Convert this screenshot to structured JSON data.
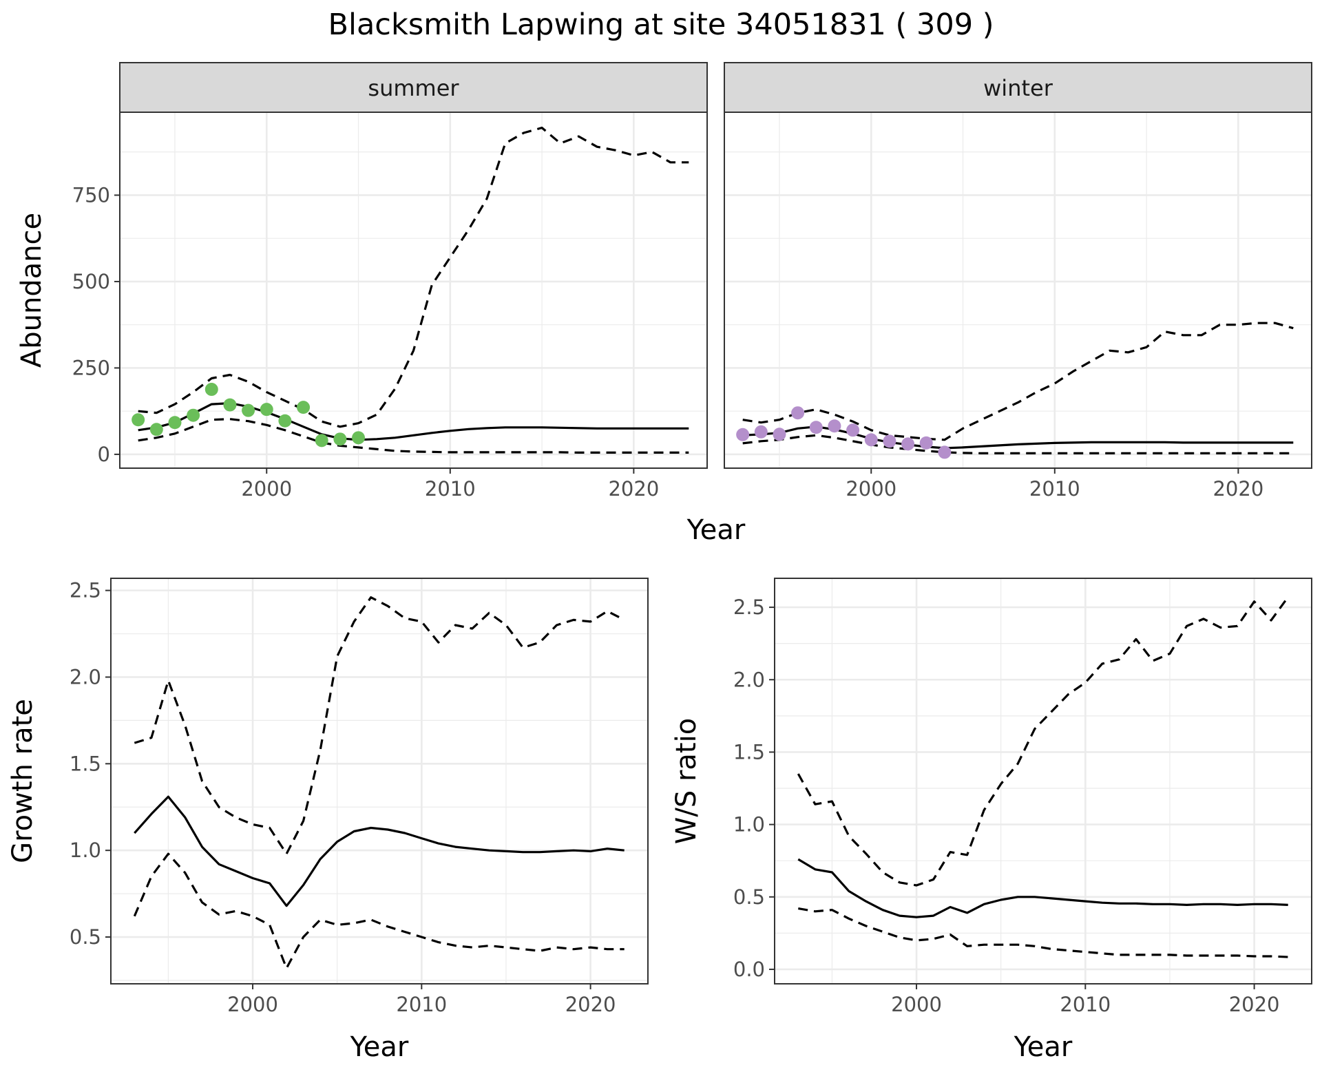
{
  "title": "Blacksmith Lapwing at site 34051831 ( 309 )",
  "colors": {
    "summer_points": "#6ABE59",
    "winter_points": "#B48FCB",
    "line": "#000000",
    "strip_bg": "#D9D9D9",
    "grid": "#EBEBEB"
  },
  "chart_data": [
    {
      "type": "line",
      "panel": "summer",
      "strip_label": "summer",
      "xlabel": "Year",
      "ylabel": "Abundance",
      "xlim": [
        1992,
        2024
      ],
      "ylim": [
        -40,
        990
      ],
      "x_ticks": [
        2000,
        2010,
        2020
      ],
      "y_ticks": [
        0,
        250,
        500,
        750
      ],
      "grid": true,
      "observed_points": {
        "x": [
          1993,
          1994,
          1995,
          1996,
          1997,
          1998,
          1999,
          2000,
          2001,
          2002,
          2003,
          2004,
          2005
        ],
        "y": [
          100,
          72,
          92,
          113,
          188,
          143,
          127,
          130,
          97,
          136,
          40,
          44,
          48
        ]
      },
      "series": [
        {
          "style": "solid",
          "x": [
            1993,
            1994,
            1995,
            1996,
            1997,
            1998,
            1999,
            2000,
            2001,
            2002,
            2003,
            2004,
            2005,
            2006,
            2007,
            2008,
            2009,
            2010,
            2011,
            2012,
            2013,
            2014,
            2015,
            2016,
            2017,
            2018,
            2019,
            2020,
            2021,
            2022,
            2023
          ],
          "y": [
            70,
            78,
            92,
            118,
            145,
            148,
            138,
            122,
            102,
            80,
            58,
            46,
            42,
            44,
            48,
            55,
            62,
            68,
            73,
            76,
            78,
            78,
            78,
            77,
            76,
            75,
            75,
            75,
            75,
            75,
            75
          ]
        },
        {
          "style": "dashed",
          "x": [
            1993,
            1994,
            1995,
            1996,
            1997,
            1998,
            1999,
            2000,
            2001,
            2002,
            2003,
            2004,
            2005,
            2006,
            2007,
            2008,
            2009,
            2010,
            2011,
            2012,
            2013,
            2014,
            2015,
            2016,
            2017,
            2018,
            2019,
            2020,
            2021,
            2022,
            2023
          ],
          "y": [
            125,
            120,
            145,
            180,
            220,
            230,
            210,
            180,
            155,
            130,
            95,
            80,
            90,
            115,
            190,
            300,
            490,
            570,
            650,
            740,
            900,
            930,
            945,
            900,
            920,
            890,
            880,
            865,
            875,
            845,
            845
          ]
        },
        {
          "style": "dashed",
          "x": [
            1993,
            1994,
            1995,
            1996,
            1997,
            1998,
            1999,
            2000,
            2001,
            2002,
            2003,
            2004,
            2005,
            2006,
            2007,
            2008,
            2009,
            2010,
            2011,
            2012,
            2013,
            2014,
            2015,
            2016,
            2017,
            2018,
            2019,
            2020,
            2021,
            2022,
            2023
          ],
          "y": [
            40,
            48,
            60,
            80,
            100,
            102,
            96,
            85,
            70,
            52,
            34,
            25,
            20,
            15,
            10,
            8,
            7,
            6,
            6,
            6,
            6,
            6,
            6,
            6,
            5,
            5,
            5,
            5,
            5,
            5,
            5
          ]
        }
      ]
    },
    {
      "type": "line",
      "panel": "winter",
      "strip_label": "winter",
      "xlabel": "Year",
      "ylabel": "",
      "xlim": [
        1992,
        2024
      ],
      "ylim": [
        -40,
        990
      ],
      "x_ticks": [
        2000,
        2010,
        2020
      ],
      "y_ticks": [
        0,
        250,
        500,
        750
      ],
      "grid": true,
      "observed_points": {
        "x": [
          1993,
          1994,
          1995,
          1996,
          1997,
          1998,
          1999,
          2000,
          2001,
          2002,
          2003,
          2004
        ],
        "y": [
          57,
          65,
          58,
          120,
          78,
          82,
          70,
          42,
          38,
          30,
          33,
          6
        ]
      },
      "series": [
        {
          "style": "solid",
          "x": [
            1993,
            1994,
            1995,
            1996,
            1997,
            1998,
            1999,
            2000,
            2001,
            2002,
            2003,
            2004,
            2005,
            2006,
            2007,
            2008,
            2009,
            2010,
            2011,
            2012,
            2013,
            2014,
            2015,
            2016,
            2017,
            2018,
            2019,
            2020,
            2021,
            2022,
            2023
          ],
          "y": [
            55,
            58,
            62,
            75,
            80,
            72,
            60,
            45,
            35,
            28,
            22,
            18,
            20,
            23,
            26,
            29,
            31,
            33,
            34,
            35,
            35,
            35,
            35,
            35,
            34,
            34,
            34,
            34,
            34,
            34,
            34
          ]
        },
        {
          "style": "dashed",
          "x": [
            1993,
            1994,
            1995,
            1996,
            1997,
            1998,
            1999,
            2000,
            2001,
            2002,
            2003,
            2004,
            2005,
            2006,
            2007,
            2008,
            2009,
            2010,
            2011,
            2012,
            2013,
            2014,
            2015,
            2016,
            2017,
            2018,
            2019,
            2020,
            2021,
            2022,
            2023
          ],
          "y": [
            100,
            92,
            100,
            120,
            130,
            115,
            95,
            70,
            55,
            50,
            45,
            42,
            75,
            100,
            125,
            150,
            180,
            205,
            240,
            270,
            300,
            295,
            310,
            355,
            345,
            345,
            375,
            375,
            380,
            380,
            365
          ]
        },
        {
          "style": "dashed",
          "x": [
            1993,
            1994,
            1995,
            1996,
            1997,
            1998,
            1999,
            2000,
            2001,
            2002,
            2003,
            2004,
            2005,
            2006,
            2007,
            2008,
            2009,
            2010,
            2011,
            2012,
            2013,
            2014,
            2015,
            2016,
            2017,
            2018,
            2019,
            2020,
            2021,
            2022,
            2023
          ],
          "y": [
            32,
            38,
            42,
            50,
            55,
            48,
            38,
            28,
            20,
            15,
            10,
            6,
            4,
            3,
            3,
            3,
            3,
            3,
            3,
            3,
            3,
            3,
            3,
            3,
            3,
            3,
            3,
            3,
            3,
            3,
            3
          ]
        }
      ]
    },
    {
      "type": "line",
      "panel": "growth",
      "xlabel": "Year",
      "ylabel": "Growth rate",
      "xlim": [
        1991.6,
        2023.4
      ],
      "ylim": [
        0.23,
        2.57
      ],
      "x_ticks": [
        2000,
        2010,
        2020
      ],
      "y_ticks": [
        0.5,
        1.0,
        1.5,
        2.0,
        2.5
      ],
      "y_tick_labels": [
        "0.5",
        "1.0",
        "1.5",
        "2.0",
        "2.5"
      ],
      "grid": true,
      "series": [
        {
          "style": "solid",
          "x": [
            1993,
            1994,
            1995,
            1996,
            1997,
            1998,
            1999,
            2000,
            2001,
            2002,
            2003,
            2004,
            2005,
            2006,
            2007,
            2008,
            2009,
            2010,
            2011,
            2012,
            2013,
            2014,
            2015,
            2016,
            2017,
            2018,
            2019,
            2020,
            2021,
            2022
          ],
          "y": [
            1.1,
            1.21,
            1.31,
            1.19,
            1.02,
            0.92,
            0.88,
            0.84,
            0.81,
            0.68,
            0.8,
            0.95,
            1.05,
            1.11,
            1.13,
            1.12,
            1.1,
            1.07,
            1.04,
            1.02,
            1.01,
            1.0,
            0.995,
            0.99,
            0.99,
            0.995,
            1.0,
            0.995,
            1.01,
            1.0
          ]
        },
        {
          "style": "dashed",
          "x": [
            1993,
            1994,
            1995,
            1996,
            1997,
            1998,
            1999,
            2000,
            2001,
            2002,
            2003,
            2004,
            2005,
            2006,
            2007,
            2008,
            2009,
            2010,
            2011,
            2012,
            2013,
            2014,
            2015,
            2016,
            2017,
            2018,
            2019,
            2020,
            2021,
            2022
          ],
          "y": [
            1.62,
            1.65,
            1.98,
            1.72,
            1.4,
            1.25,
            1.19,
            1.15,
            1.13,
            0.98,
            1.17,
            1.58,
            2.12,
            2.32,
            2.46,
            2.41,
            2.34,
            2.32,
            2.2,
            2.3,
            2.28,
            2.37,
            2.3,
            2.17,
            2.2,
            2.3,
            2.33,
            2.32,
            2.38,
            2.33
          ]
        },
        {
          "style": "dashed",
          "x": [
            1993,
            1994,
            1995,
            1996,
            1997,
            1998,
            1999,
            2000,
            2001,
            2002,
            2003,
            2004,
            2005,
            2006,
            2007,
            2008,
            2009,
            2010,
            2011,
            2012,
            2013,
            2014,
            2015,
            2016,
            2017,
            2018,
            2019,
            2020,
            2021,
            2022
          ],
          "y": [
            0.62,
            0.85,
            0.98,
            0.87,
            0.7,
            0.63,
            0.65,
            0.62,
            0.57,
            0.32,
            0.5,
            0.6,
            0.57,
            0.58,
            0.6,
            0.56,
            0.53,
            0.5,
            0.47,
            0.45,
            0.44,
            0.45,
            0.44,
            0.43,
            0.42,
            0.44,
            0.43,
            0.44,
            0.43,
            0.43
          ]
        }
      ]
    },
    {
      "type": "line",
      "panel": "ratio",
      "xlabel": "Year",
      "ylabel": "W/S ratio",
      "xlim": [
        1991.6,
        2023.4
      ],
      "ylim": [
        -0.1,
        2.7
      ],
      "x_ticks": [
        2000,
        2010,
        2020
      ],
      "y_ticks": [
        0,
        0.5,
        1.0,
        1.5,
        2.0,
        2.5
      ],
      "y_tick_labels": [
        "0.0",
        "0.5",
        "1.0",
        "1.5",
        "2.0",
        "2.5"
      ],
      "grid": true,
      "series": [
        {
          "style": "solid",
          "x": [
            1993,
            1994,
            1995,
            1996,
            1997,
            1998,
            1999,
            2000,
            2001,
            2002,
            2003,
            2004,
            2005,
            2006,
            2007,
            2008,
            2009,
            2010,
            2011,
            2012,
            2013,
            2014,
            2015,
            2016,
            2017,
            2018,
            2019,
            2020,
            2021,
            2022
          ],
          "y": [
            0.76,
            0.69,
            0.67,
            0.54,
            0.47,
            0.41,
            0.37,
            0.36,
            0.37,
            0.43,
            0.39,
            0.45,
            0.48,
            0.5,
            0.5,
            0.49,
            0.48,
            0.47,
            0.46,
            0.455,
            0.455,
            0.45,
            0.45,
            0.445,
            0.45,
            0.45,
            0.445,
            0.45,
            0.45,
            0.445
          ]
        },
        {
          "style": "dashed",
          "x": [
            1993,
            1994,
            1995,
            1996,
            1997,
            1998,
            1999,
            2000,
            2001,
            2002,
            2003,
            2004,
            2005,
            2006,
            2007,
            2008,
            2009,
            2010,
            2011,
            2012,
            2013,
            2014,
            2015,
            2016,
            2017,
            2018,
            2019,
            2020,
            2021,
            2022
          ],
          "y": [
            1.35,
            1.14,
            1.16,
            0.92,
            0.8,
            0.67,
            0.6,
            0.58,
            0.62,
            0.81,
            0.79,
            1.1,
            1.28,
            1.42,
            1.66,
            1.78,
            1.9,
            1.98,
            2.11,
            2.14,
            2.28,
            2.13,
            2.18,
            2.37,
            2.42,
            2.36,
            2.37,
            2.54,
            2.41,
            2.57
          ]
        },
        {
          "style": "dashed",
          "x": [
            1993,
            1994,
            1995,
            1996,
            1997,
            1998,
            1999,
            2000,
            2001,
            2002,
            2003,
            2004,
            2005,
            2006,
            2007,
            2008,
            2009,
            2010,
            2011,
            2012,
            2013,
            2014,
            2015,
            2016,
            2017,
            2018,
            2019,
            2020,
            2021,
            2022
          ],
          "y": [
            0.42,
            0.4,
            0.41,
            0.35,
            0.3,
            0.26,
            0.22,
            0.2,
            0.21,
            0.24,
            0.16,
            0.17,
            0.17,
            0.17,
            0.16,
            0.14,
            0.13,
            0.12,
            0.11,
            0.1,
            0.1,
            0.1,
            0.1,
            0.095,
            0.095,
            0.095,
            0.095,
            0.09,
            0.09,
            0.085
          ]
        }
      ]
    }
  ]
}
